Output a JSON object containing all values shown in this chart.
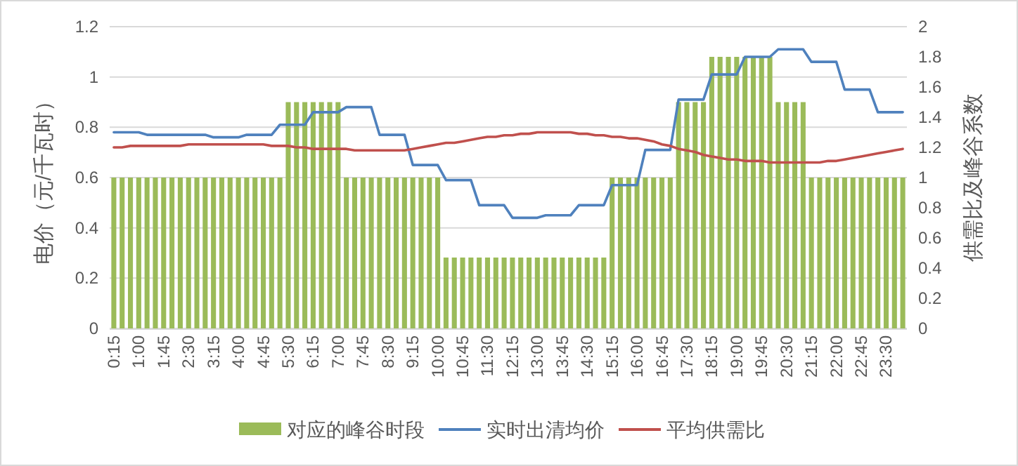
{
  "chart_data": {
    "type": "bar",
    "ylabel": "电价（元/千瓦时）",
    "y2label": "供需比及峰谷系数",
    "ylim": [
      0,
      1.2
    ],
    "yticks": [
      0,
      0.2,
      0.4,
      0.6,
      0.8,
      1,
      1.2
    ],
    "y2lim": [
      0,
      2
    ],
    "y2ticks": [
      0,
      0.2,
      0.4,
      0.6,
      0.8,
      1,
      1.2,
      1.4,
      1.6,
      1.8,
      2
    ],
    "grid": "y",
    "legend": "bottom",
    "categories": [
      "0:15",
      null,
      null,
      "1:00",
      null,
      null,
      "1:45",
      null,
      null,
      "2:30",
      null,
      null,
      "3:15",
      null,
      null,
      "4:00",
      null,
      null,
      "4:45",
      null,
      null,
      "5:30",
      null,
      null,
      "6:15",
      null,
      null,
      "7:00",
      null,
      null,
      "7:45",
      null,
      null,
      "8:30",
      null,
      null,
      "9:15",
      null,
      null,
      "10:00",
      null,
      null,
      "10:45",
      null,
      null,
      "11:30",
      null,
      null,
      "12:15",
      null,
      null,
      "13:00",
      null,
      null,
      "13:45",
      null,
      null,
      "14:30",
      null,
      null,
      "15:15",
      null,
      null,
      "16:00",
      null,
      null,
      "16:45",
      null,
      null,
      "17:30",
      null,
      null,
      "18:15",
      null,
      null,
      "19:00",
      null,
      null,
      "19:45",
      null,
      null,
      "20:30",
      null,
      null,
      "21:15",
      null,
      null,
      "22:00",
      null,
      null,
      "22:45",
      null,
      null,
      "23:30",
      null,
      null
    ],
    "series": [
      {
        "name": "对应的峰谷时段",
        "axis": "y2",
        "color": "#9bbb59",
        "values": [
          1,
          1,
          1,
          1,
          1,
          1,
          1,
          1,
          1,
          1,
          1,
          1,
          1,
          1,
          1,
          1,
          1,
          1,
          1,
          1,
          1,
          1.5,
          1.5,
          1.5,
          1.5,
          1.5,
          1.5,
          1.5,
          1,
          1,
          1,
          1,
          1,
          1,
          1,
          1,
          1,
          1,
          1,
          1,
          0.47,
          0.47,
          0.47,
          0.47,
          0.47,
          0.47,
          0.47,
          0.47,
          0.47,
          0.47,
          0.47,
          0.47,
          0.47,
          0.47,
          0.47,
          0.47,
          0.47,
          0.47,
          0.47,
          0.47,
          1,
          1,
          1,
          1,
          1,
          1,
          1,
          1,
          1.5,
          1.5,
          1.5,
          1.5,
          1.8,
          1.8,
          1.8,
          1.8,
          1.8,
          1.8,
          1.8,
          1.8,
          1.5,
          1.5,
          1.5,
          1.5,
          1,
          1,
          1,
          1,
          1,
          1,
          1,
          1,
          1,
          1,
          1,
          1
        ]
      },
      {
        "name": "实时出清均价",
        "type": "line",
        "axis": "y",
        "color": "#4f81bd",
        "values": [
          0.78,
          0.78,
          0.78,
          0.78,
          0.77,
          0.77,
          0.77,
          0.77,
          0.77,
          0.77,
          0.77,
          0.77,
          0.76,
          0.76,
          0.76,
          0.76,
          0.77,
          0.77,
          0.77,
          0.77,
          0.81,
          0.81,
          0.81,
          0.81,
          0.86,
          0.86,
          0.86,
          0.86,
          0.88,
          0.88,
          0.88,
          0.88,
          0.77,
          0.77,
          0.77,
          0.77,
          0.65,
          0.65,
          0.65,
          0.65,
          0.59,
          0.59,
          0.59,
          0.59,
          0.49,
          0.49,
          0.49,
          0.49,
          0.44,
          0.44,
          0.44,
          0.44,
          0.45,
          0.45,
          0.45,
          0.45,
          0.49,
          0.49,
          0.49,
          0.49,
          0.57,
          0.57,
          0.57,
          0.57,
          0.71,
          0.71,
          0.71,
          0.71,
          0.91,
          0.91,
          0.91,
          0.91,
          1.01,
          1.01,
          1.01,
          1.01,
          1.08,
          1.08,
          1.08,
          1.08,
          1.11,
          1.11,
          1.11,
          1.11,
          1.06,
          1.06,
          1.06,
          1.06,
          0.95,
          0.95,
          0.95,
          0.95,
          0.86,
          0.86,
          0.86,
          0.86
        ]
      },
      {
        "name": "平均供需比",
        "type": "line",
        "axis": "y2",
        "color": "#c0504d",
        "values": [
          1.2,
          1.2,
          1.21,
          1.21,
          1.21,
          1.21,
          1.21,
          1.21,
          1.21,
          1.22,
          1.22,
          1.22,
          1.22,
          1.22,
          1.22,
          1.22,
          1.22,
          1.22,
          1.22,
          1.21,
          1.21,
          1.21,
          1.2,
          1.2,
          1.19,
          1.19,
          1.19,
          1.19,
          1.19,
          1.18,
          1.18,
          1.18,
          1.18,
          1.18,
          1.18,
          1.18,
          1.19,
          1.2,
          1.21,
          1.22,
          1.23,
          1.23,
          1.24,
          1.25,
          1.26,
          1.27,
          1.27,
          1.28,
          1.28,
          1.29,
          1.29,
          1.3,
          1.3,
          1.3,
          1.3,
          1.3,
          1.29,
          1.29,
          1.28,
          1.28,
          1.27,
          1.27,
          1.26,
          1.26,
          1.25,
          1.24,
          1.22,
          1.21,
          1.19,
          1.18,
          1.17,
          1.15,
          1.14,
          1.13,
          1.12,
          1.12,
          1.11,
          1.11,
          1.11,
          1.1,
          1.1,
          1.1,
          1.1,
          1.1,
          1.1,
          1.1,
          1.11,
          1.11,
          1.12,
          1.13,
          1.14,
          1.15,
          1.16,
          1.17,
          1.18,
          1.19
        ]
      }
    ]
  }
}
